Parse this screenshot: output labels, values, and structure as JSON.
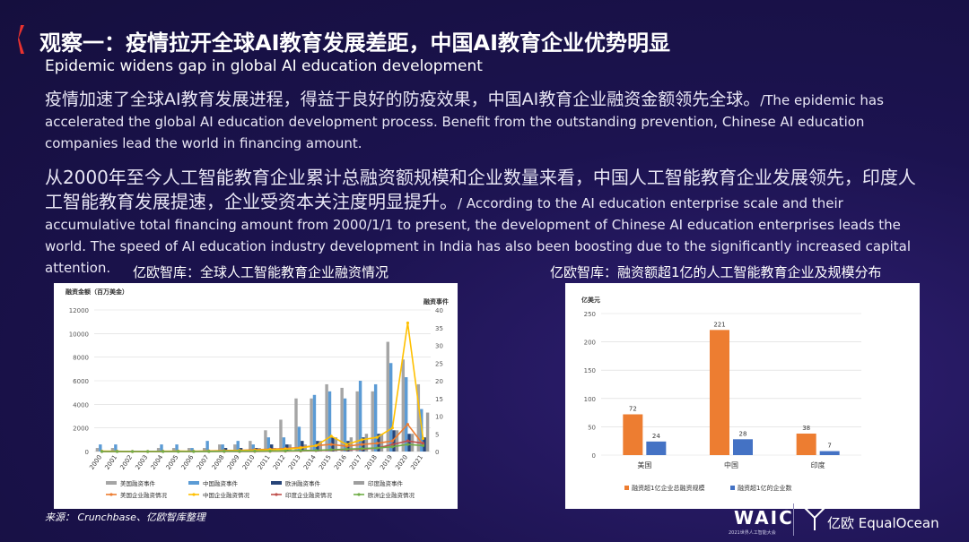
{
  "header": {
    "title": "观察一：疫情拉开全球AI教育发展差距，中国AI教育企业优势明显",
    "subtitle": "Epidemic widens gap in global AI education development",
    "accent_color": "#e8322f"
  },
  "paragraphs": {
    "p1_zh": "疫情加速了全球AI教育发展进程，得益于良好的防疫效果，中国AI教育企业融资金额领先全球。",
    "p1_en": "/The epidemic has accelerated the global AI education development process. Benefit from the outstanding prevention, Chinese AI education companies lead the world in financing amount.",
    "p2_zh": "从2000年至今人工智能教育企业累计总融资额规模和企业数量来看，中国人工智能教育企业发展领先，印度人工智能教育发展提速，企业受资本关注度明显提升。",
    "p2_en": "/ According to the AI education enterprise scale and their accumulative total financing amount from 2000/1/1 to present,  the development of Chinese AI education enterprises leads the world. The speed of AI education industry development in India has also been boosting due to the significantly increased capital attention."
  },
  "source": "来源： Crunchbase、亿欧智库整理",
  "logos": {
    "waic": "WAIC",
    "waic_sub": "2021世界人工智能大会",
    "equalocean": "亿欧 EqualOcean"
  },
  "chart_data": [
    {
      "type": "bar",
      "title": "亿欧智库：全球人工智能教育企业融资情况",
      "ylabel": "融资金额（百万美金）",
      "y2label": "融资事件",
      "ylim": [
        0,
        12000
      ],
      "y2lim": [
        0,
        40
      ],
      "yticks": [
        0,
        2000,
        4000,
        6000,
        8000,
        10000,
        12000
      ],
      "y2ticks": [
        0,
        5,
        10,
        15,
        20,
        25,
        30,
        35,
        40
      ],
      "grid": true,
      "legend_position": "bottom",
      "categories": [
        "2000",
        "2001",
        "2002",
        "2003",
        "2004",
        "2005",
        "2006",
        "2007",
        "2008",
        "2009",
        "2010",
        "2011",
        "2012",
        "2013",
        "2014",
        "2015",
        "2016",
        "2017",
        "2018",
        "2019",
        "2020",
        "2021"
      ],
      "bar_series": [
        {
          "name": "美国融资事件",
          "color": "#a5a5a5",
          "values": [
            1,
            1,
            0,
            0,
            1,
            1,
            1,
            1,
            2,
            2,
            3,
            6,
            9,
            15,
            15,
            19,
            18,
            17,
            17,
            31,
            26,
            19
          ]
        },
        {
          "name": "中国融资事件",
          "color": "#5b9bd5",
          "values": [
            2,
            2,
            0,
            0,
            2,
            2,
            1,
            3,
            2,
            3,
            2,
            4,
            4,
            7,
            16,
            17,
            15,
            20,
            19,
            25,
            21,
            12
          ]
        },
        {
          "name": "欧洲融资事件",
          "color": "#264478",
          "values": [
            0,
            0,
            0,
            0,
            0,
            0,
            0,
            0,
            1,
            1,
            1,
            2,
            2,
            3,
            3,
            4,
            3,
            4,
            5,
            6,
            5,
            4
          ]
        },
        {
          "name": "印度融资事件",
          "color": "#9e9e9e",
          "values": [
            0,
            0,
            0,
            0,
            0,
            0,
            0,
            0,
            0,
            0,
            1,
            1,
            2,
            2,
            3,
            4,
            4,
            5,
            5,
            6,
            5,
            11
          ]
        }
      ],
      "line_series": [
        {
          "name": "美国企业融资情况",
          "color": "#ed7d31",
          "values": [
            10,
            10,
            0,
            0,
            10,
            20,
            10,
            50,
            80,
            100,
            150,
            200,
            250,
            350,
            500,
            600,
            450,
            600,
            700,
            900,
            2300,
            600
          ]
        },
        {
          "name": "中国企业融资情况",
          "color": "#ffc000",
          "values": [
            30,
            20,
            0,
            0,
            20,
            30,
            20,
            40,
            50,
            80,
            100,
            150,
            200,
            300,
            500,
            1300,
            600,
            1000,
            1200,
            2000,
            10900,
            1100
          ]
        },
        {
          "name": "印度企业融资情况",
          "color": "#c0504d",
          "values": [
            0,
            0,
            0,
            0,
            0,
            0,
            0,
            0,
            0,
            0,
            10,
            20,
            30,
            50,
            80,
            120,
            150,
            200,
            300,
            600,
            900,
            700
          ]
        },
        {
          "name": "欧洲企业融资情况",
          "color": "#70ad47",
          "values": [
            0,
            0,
            0,
            0,
            0,
            0,
            0,
            10,
            20,
            20,
            30,
            40,
            50,
            80,
            100,
            150,
            200,
            250,
            300,
            400,
            600,
            500
          ]
        }
      ]
    },
    {
      "type": "bar",
      "title": "亿欧智库：融资额超1亿的人工智能教育企业及规模分布",
      "ylabel": "亿美元",
      "ylim": [
        0,
        250
      ],
      "yticks": [
        0,
        50,
        100,
        150,
        200,
        250
      ],
      "grid": true,
      "legend_position": "bottom",
      "categories": [
        "美国",
        "中国",
        "印度"
      ],
      "series": [
        {
          "name": "融资超1亿企业总融资规模",
          "color": "#ed7d31",
          "values": [
            72,
            221,
            38
          ],
          "labels": [
            "72",
            "221",
            "38"
          ]
        },
        {
          "name": "融资超1亿的企业数",
          "color": "#4472c4",
          "values": [
            24,
            28,
            7
          ],
          "labels": [
            "24",
            "28",
            "7"
          ]
        }
      ]
    }
  ]
}
